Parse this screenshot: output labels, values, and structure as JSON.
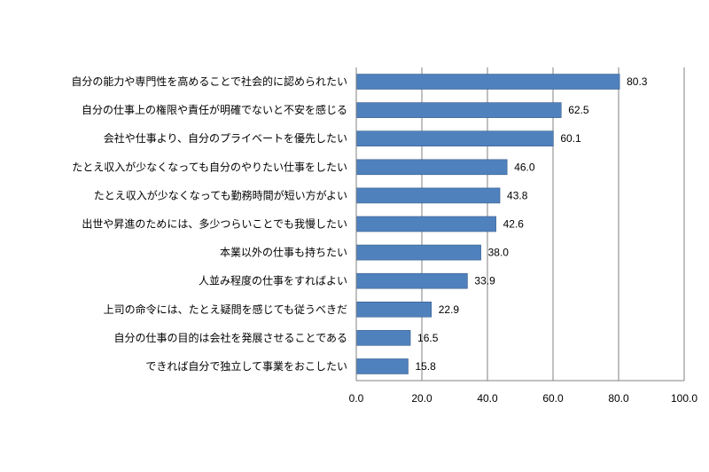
{
  "chart_data": {
    "type": "bar",
    "orientation": "horizontal",
    "categories": [
      "自分の能力や専門性を高めることで社会的に認められたい",
      "自分の仕事上の権限や責任が明確でないと不安を感じる",
      "会社や仕事より、自分のプライベートを優先したい",
      "たとえ収入が少なくなっても自分のやりたい仕事をしたい",
      "たとえ収入が少なくなっても勤務時間が短い方がよい",
      "出世や昇進のためには、多少つらいことでも我慢したい",
      "本業以外の仕事も持ちたい",
      "人並み程度の仕事をすればよい",
      "上司の命令には、たとえ疑問を感じても従うべきだ",
      "自分の仕事の目的は会社を発展させることである",
      "できれば自分で独立して事業をおこしたい"
    ],
    "values": [
      80.3,
      62.5,
      60.1,
      46.0,
      43.8,
      42.6,
      38.0,
      33.9,
      22.9,
      16.5,
      15.8
    ],
    "value_labels": [
      "80.3",
      "62.5",
      "60.1",
      "46.0",
      "43.8",
      "42.6",
      "38.0",
      "33.9",
      "22.9",
      "16.5",
      "15.8"
    ],
    "xlim": [
      0,
      100
    ],
    "xticks": [
      "0.0",
      "20.0",
      "40.0",
      "60.0",
      "80.0",
      "100.0"
    ],
    "grid": true,
    "bar_color": "#4f81bd",
    "bar_edge_color": "#385d8a"
  }
}
